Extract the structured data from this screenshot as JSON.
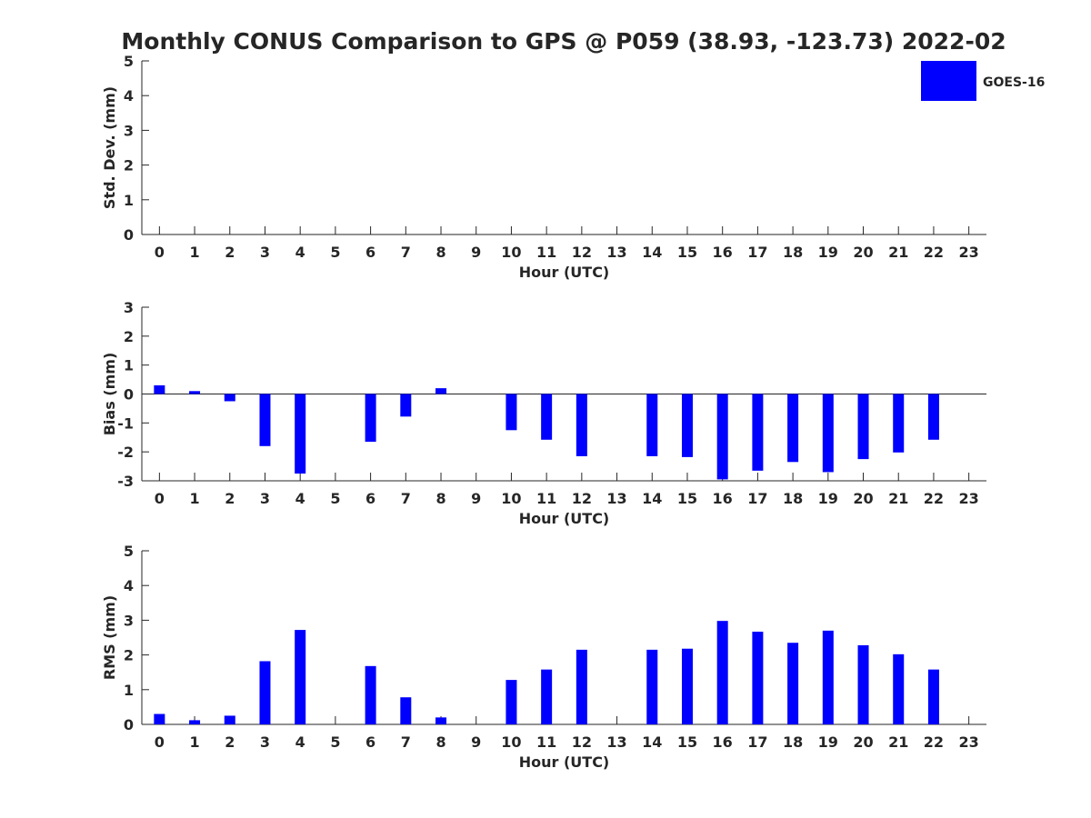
{
  "title": "Monthly CONUS Comparison to GPS @ P059 (38.93, -123.73) 2022-02",
  "legend": {
    "label": "GOES-16",
    "color": "#0000ff",
    "placement": "top-right"
  },
  "bar_color": "#0000ff",
  "chart_data": [
    {
      "type": "bar",
      "xlabel": "Hour (UTC)",
      "ylabel": "Std. Dev. (mm)",
      "xlim": [
        -0.5,
        23.5
      ],
      "ylim": [
        0,
        5
      ],
      "yticks": [
        0,
        1,
        2,
        3,
        4,
        5
      ],
      "categories": [
        "0",
        "1",
        "2",
        "3",
        "4",
        "5",
        "6",
        "7",
        "8",
        "9",
        "10",
        "11",
        "12",
        "13",
        "14",
        "15",
        "16",
        "17",
        "18",
        "19",
        "20",
        "21",
        "22",
        "23"
      ],
      "series": [
        {
          "name": "GOES-16",
          "values": [
            null,
            null,
            null,
            null,
            null,
            null,
            null,
            null,
            null,
            null,
            null,
            null,
            null,
            null,
            null,
            null,
            null,
            null,
            null,
            null,
            null,
            null,
            null,
            null
          ]
        }
      ]
    },
    {
      "type": "bar",
      "xlabel": "Hour (UTC)",
      "ylabel": "Bias (mm)",
      "xlim": [
        -0.5,
        23.5
      ],
      "ylim": [
        -3,
        3
      ],
      "yticks": [
        -3,
        -2,
        -1,
        0,
        1,
        2,
        3
      ],
      "categories": [
        "0",
        "1",
        "2",
        "3",
        "4",
        "5",
        "6",
        "7",
        "8",
        "9",
        "10",
        "11",
        "12",
        "13",
        "14",
        "15",
        "16",
        "17",
        "18",
        "19",
        "20",
        "21",
        "22",
        "23"
      ],
      "series": [
        {
          "name": "GOES-16",
          "values": [
            0.3,
            0.1,
            -0.25,
            -1.8,
            -2.75,
            null,
            -1.65,
            -0.78,
            0.2,
            null,
            -1.25,
            -1.58,
            -2.15,
            null,
            -2.15,
            -2.18,
            -2.95,
            -2.65,
            -2.35,
            -2.7,
            -2.25,
            -2.02,
            -1.58,
            null
          ]
        }
      ]
    },
    {
      "type": "bar",
      "xlabel": "Hour (UTC)",
      "ylabel": "RMS (mm)",
      "xlim": [
        -0.5,
        23.5
      ],
      "ylim": [
        0,
        5
      ],
      "yticks": [
        0,
        1,
        2,
        3,
        4,
        5
      ],
      "categories": [
        "0",
        "1",
        "2",
        "3",
        "4",
        "5",
        "6",
        "7",
        "8",
        "9",
        "10",
        "11",
        "12",
        "13",
        "14",
        "15",
        "16",
        "17",
        "18",
        "19",
        "20",
        "21",
        "22",
        "23"
      ],
      "series": [
        {
          "name": "GOES-16",
          "values": [
            0.3,
            0.12,
            0.25,
            1.82,
            2.72,
            null,
            1.68,
            0.78,
            0.2,
            null,
            1.28,
            1.58,
            2.15,
            null,
            2.15,
            2.18,
            2.98,
            2.67,
            2.35,
            2.7,
            2.28,
            2.02,
            1.58,
            null
          ]
        }
      ]
    }
  ]
}
